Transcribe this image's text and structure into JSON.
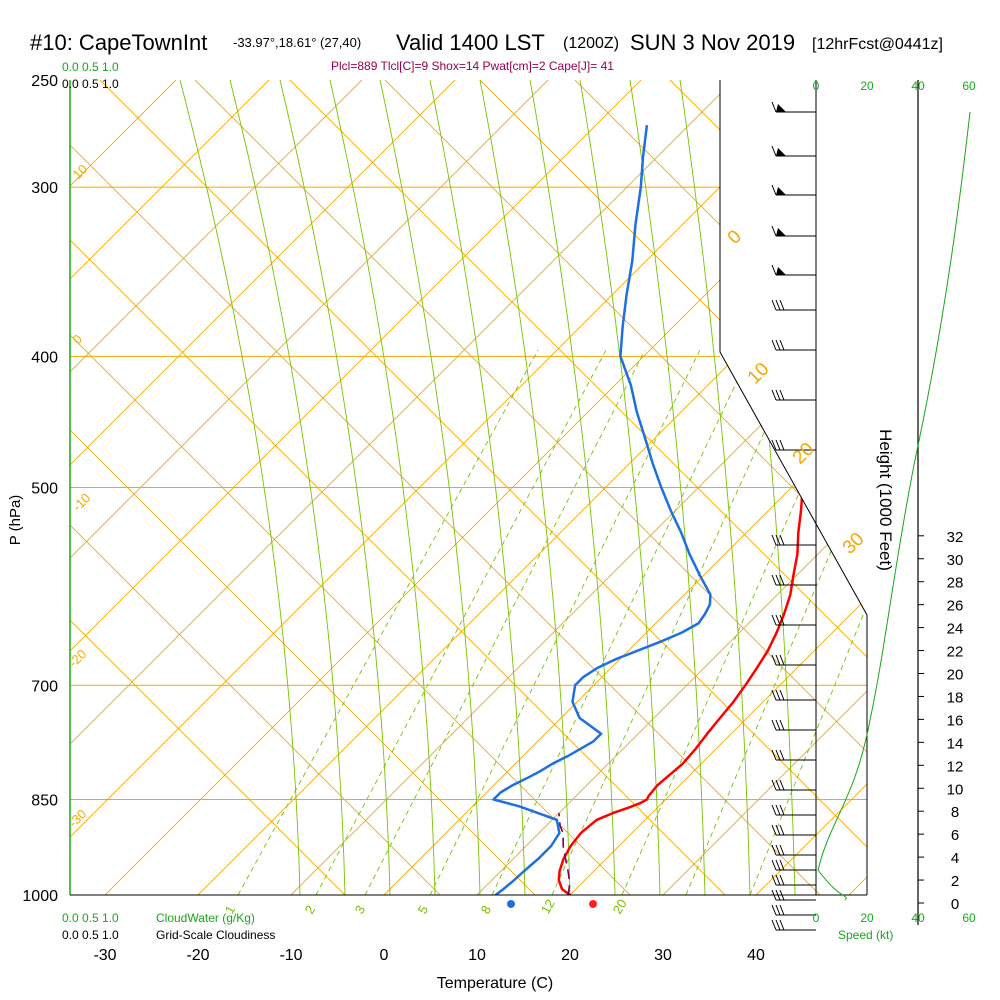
{
  "header": {
    "station": "#10: CapeTownInt",
    "coords": "-33.97°,18.61° (27,40)",
    "valid": "Valid 1400 LST",
    "z": "(1200Z)",
    "date": "SUN 3 Nov 2019",
    "fcst": "[12hrFcst@0441z]",
    "params": "Plcl=889 Tlcl[C]=9 Shox=14 Pwat[cm]=2 Cape[J]= 41"
  },
  "colors": {
    "temperature": "#ff0000",
    "dewpoint": "#1e6fe0",
    "parcel": "#7a0050",
    "isotherm": "#f5a800",
    "dry_adiabat": "#7ac000",
    "mixing_ratio": "#7ac000",
    "green_text": "#1aa61a",
    "params_text": "#990055"
  },
  "chart_data": {
    "type": "line",
    "title": "#10: CapeTownInt",
    "xlabel": "Temperature (C)",
    "ylabel": "P (hPa)",
    "y2label": "Height (1000 Feet)",
    "x_ticks": [
      "-30",
      "-20",
      "-10",
      "0",
      "10",
      "20",
      "30",
      "40"
    ],
    "p_ticks": [
      "250",
      "300",
      "400",
      "500",
      "700",
      "850",
      "1000"
    ],
    "height_ticks": [
      "0",
      "2",
      "4",
      "6",
      "8",
      "10",
      "12",
      "14",
      "16",
      "18",
      "20",
      "22",
      "24",
      "26",
      "28",
      "30",
      "32"
    ],
    "isotherm_labels": [
      "10",
      "0",
      "-10",
      "-20",
      "-30",
      "0",
      "10",
      "20",
      "30"
    ],
    "mixing_ratio_labels": [
      "1",
      "2",
      "3",
      "5",
      "8",
      "12",
      "20"
    ],
    "cloud_scale_top_green": [
      "0.0",
      "0.5",
      "1.0"
    ],
    "cloud_scale_top_black": [
      "0.0",
      "0.5",
      "1.0"
    ],
    "cloud_scale_bottom_green": [
      "0.0",
      "0.5",
      "1.0"
    ],
    "cloud_scale_bottom_black": [
      "0.0",
      "0.5",
      "1.0"
    ],
    "cloudwater_label": "CloudWater (g/Kg)",
    "cloudiness_label": "Grid-Scale Cloudiness",
    "speed_ticks": [
      "0",
      "20",
      "40",
      "60"
    ],
    "speed_label": "Speed (kt)",
    "series": [
      {
        "name": "Temperature",
        "pressure": [
          1008,
          1000,
          990,
          975,
          960,
          940,
          920,
          900,
          880,
          870,
          862,
          855,
          850,
          845,
          830,
          815,
          800,
          780,
          760,
          740,
          720,
          700,
          680,
          660,
          640,
          620,
          600,
          580,
          560,
          540,
          520,
          500,
          480,
          460,
          440,
          420,
          400,
          380,
          360,
          340,
          320,
          300,
          285,
          270
        ],
        "temp": [
          21.0,
          20.0,
          18.5,
          17.2,
          16.3,
          15.4,
          14.8,
          14.5,
          14.8,
          15.8,
          16.9,
          17.7,
          18.0,
          17.8,
          17.6,
          17.8,
          18.0,
          17.8,
          17.4,
          17.1,
          16.8,
          16.3,
          15.7,
          15.0,
          14.0,
          12.8,
          11.4,
          9.6,
          7.8,
          5.6,
          3.5,
          1.2,
          -1.1,
          -3.5,
          -6.1,
          -8.9,
          -11.8,
          -14.3,
          -17.5,
          -20.6,
          -24.2,
          -28.0,
          -31.2,
          -34.5
        ]
      },
      {
        "name": "Dewpoint",
        "pressure": [
          1008,
          1000,
          990,
          975,
          960,
          940,
          920,
          900,
          880,
          860,
          850,
          840,
          830,
          820,
          810,
          800,
          790,
          780,
          770,
          760,
          740,
          720,
          700,
          690,
          680,
          670,
          660,
          650,
          640,
          630,
          620,
          610,
          600,
          580,
          560,
          540,
          520,
          500,
          480,
          460,
          440,
          420,
          400,
          380,
          360,
          340,
          320,
          300,
          285,
          270
        ],
        "dew": [
          12.0,
          12.0,
          12.2,
          12.4,
          12.5,
          12.7,
          12.7,
          12.2,
          10.5,
          5.0,
          1.5,
          1.5,
          2.0,
          2.8,
          3.5,
          4.0,
          4.8,
          5.4,
          6.0,
          6.0,
          2.0,
          -0.5,
          -2.0,
          -2.0,
          -1.5,
          -0.5,
          1.0,
          2.5,
          3.8,
          4.6,
          4.3,
          3.8,
          2.8,
          -0.5,
          -3.8,
          -7.0,
          -10.5,
          -14.0,
          -17.5,
          -21.0,
          -24.7,
          -28.3,
          -32.5,
          -35.5,
          -38.5,
          -41.5,
          -45.0,
          -48.5,
          -51.5,
          -54.5
        ]
      },
      {
        "name": "Parcel",
        "pressure": [
          1000,
          980,
          960,
          940,
          920,
          900,
          889,
          870
        ],
        "temp": [
          19.8,
          18.7,
          17.2,
          15.6,
          14.0,
          12.6,
          11.5,
          10.0
        ]
      }
    ],
    "surface_temp": 21,
    "surface_dew": 12
  }
}
